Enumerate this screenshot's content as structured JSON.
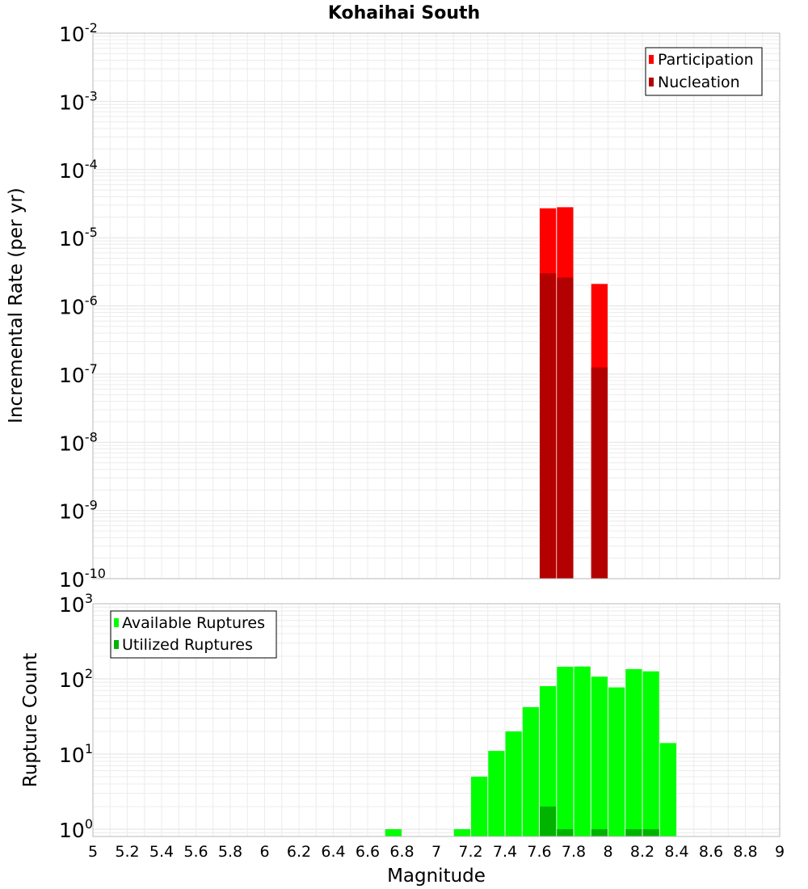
{
  "chart_data": [
    {
      "type": "bar",
      "title": "Kohaihai South",
      "xlabel": "Magnitude",
      "ylabel": "Incremental Rate (per yr)",
      "yscale": "log",
      "xlim": [
        5,
        9
      ],
      "ylim": [
        1e-10,
        0.01
      ],
      "grid": true,
      "legend_position": "top-right",
      "bar_width": 0.095,
      "series": [
        {
          "name": "Participation",
          "color": "#ff0000",
          "x": [
            7.65,
            7.75,
            7.95
          ],
          "values": [
            2.7e-05,
            2.8e-05,
            2.1e-06
          ]
        },
        {
          "name": "Nucleation",
          "color": "#b30000",
          "x": [
            7.65,
            7.75,
            7.95
          ],
          "values": [
            3e-06,
            2.6e-06,
            1.25e-07
          ]
        }
      ]
    },
    {
      "type": "bar",
      "title": "",
      "xlabel": "Magnitude",
      "ylabel": "Rupture Count",
      "yscale": "log",
      "xlim": [
        5,
        9
      ],
      "ylim": [
        0.8,
        1000
      ],
      "grid": true,
      "legend_position": "top-left",
      "bar_width": 0.095,
      "series": [
        {
          "name": "Available Ruptures",
          "color": "#00ff00",
          "x": [
            6.75,
            7.15,
            7.25,
            7.35,
            7.45,
            7.55,
            7.65,
            7.75,
            7.85,
            7.95,
            8.05,
            8.15,
            8.25,
            8.35
          ],
          "values": [
            1,
            1,
            5,
            11,
            20,
            42,
            80,
            145,
            146,
            107,
            77,
            135,
            126,
            14
          ]
        },
        {
          "name": "Utilized Ruptures",
          "color": "#00b300",
          "x": [
            7.65,
            7.75,
            7.95,
            8.15,
            8.25
          ],
          "values": [
            2,
            1,
            1,
            1,
            1
          ]
        }
      ]
    }
  ],
  "x_ticks": [
    "5",
    "5.2",
    "5.4",
    "5.6",
    "5.8",
    "6",
    "6.2",
    "6.4",
    "6.6",
    "6.8",
    "7",
    "7.2",
    "7.4",
    "7.6",
    "7.8",
    "8",
    "8.2",
    "8.4",
    "8.6",
    "8.8",
    "9"
  ],
  "top_y_exponents": [
    "-2",
    "-3",
    "-4",
    "-5",
    "-6",
    "-7",
    "-8",
    "-9",
    "-10"
  ],
  "bottom_y_exponents": [
    "3",
    "2",
    "1",
    "0"
  ],
  "tick_base": "10"
}
